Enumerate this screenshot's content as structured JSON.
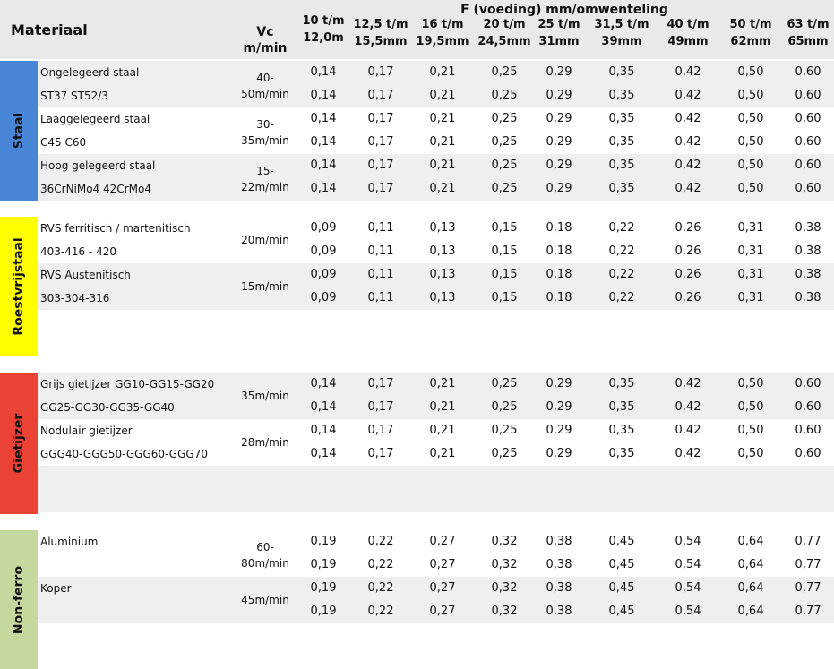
{
  "header": {
    "material": "Materiaal",
    "vc_line1": "Vc",
    "vc_line2": "m/min",
    "feed_title": "F  (voeding) mm/omwenteling",
    "columns": [
      {
        "l1": "10 t/m",
        "l2": "12,0m"
      },
      {
        "l1": "12,5 t/m",
        "l2": "15,5mm"
      },
      {
        "l1": "16 t/m",
        "l2": "19,5mm"
      },
      {
        "l1": "20 t/m",
        "l2": "24,5mm"
      },
      {
        "l1": "25 t/m",
        "l2": "31mm"
      },
      {
        "l1": "31,5 t/m",
        "l2": "39mm"
      },
      {
        "l1": "40 t/m",
        "l2": "49mm"
      },
      {
        "l1": "50 t/m",
        "l2": "62mm"
      },
      {
        "l1": "63 t/m",
        "l2": "65mm"
      }
    ]
  },
  "categories": [
    {
      "name": "Staal",
      "color": "#4a86d8"
    },
    {
      "name": "Roestvrijstaal",
      "color": "#ffff00"
    },
    {
      "name": "Gietijzer",
      "color": "#ea4335"
    },
    {
      "name": "Non-ferro",
      "color": "#c5d89e"
    }
  ],
  "rows": [
    {
      "cat": 0,
      "desc": "Ongelegeerd staal",
      "vc1": "40-",
      "values": [
        "0,14",
        "0,17",
        "0,21",
        "0,25",
        "0,29",
        "0,35",
        "0,42",
        "0,50",
        "0,60"
      ]
    },
    {
      "cat": 0,
      "desc": "ST37 ST52/3",
      "vc2": "50m/min",
      "values": [
        "0,14",
        "0,17",
        "0,21",
        "0,25",
        "0,29",
        "0,35",
        "0,42",
        "0,50",
        "0,60"
      ]
    },
    {
      "cat": 0,
      "desc": "Laaggelegeerd staal",
      "vc1": "30-",
      "values": [
        "0,14",
        "0,17",
        "0,21",
        "0,25",
        "0,29",
        "0,35",
        "0,42",
        "0,50",
        "0,60"
      ]
    },
    {
      "cat": 0,
      "desc": "C45 C60",
      "vc2": "35m/min",
      "values": [
        "0,14",
        "0,17",
        "0,21",
        "0,25",
        "0,29",
        "0,35",
        "0,42",
        "0,50",
        "0,60"
      ]
    },
    {
      "cat": 0,
      "desc": "Hoog gelegeerd staal",
      "vc1": "15-",
      "values": [
        "0,14",
        "0,17",
        "0,21",
        "0,25",
        "0,29",
        "0,35",
        "0,42",
        "0,50",
        "0,60"
      ]
    },
    {
      "cat": 0,
      "desc": "36CrNiMo4 42CrMo4",
      "vc2": "22m/min",
      "values": [
        "0,14",
        "0,17",
        "0,21",
        "0,25",
        "0,29",
        "0,35",
        "0,42",
        "0,50",
        "0,60"
      ]
    },
    {
      "cat": 1,
      "desc": "RVS ferritisch / martenitisch",
      "vcm": "20m/min",
      "values": [
        "0,09",
        "0,11",
        "0,13",
        "0,15",
        "0,18",
        "0,22",
        "0,26",
        "0,31",
        "0,38"
      ]
    },
    {
      "cat": 1,
      "desc": " 403-416 - 420",
      "values": [
        "0,09",
        "0,11",
        "0,13",
        "0,15",
        "0,18",
        "0,22",
        "0,26",
        "0,31",
        "0,38"
      ]
    },
    {
      "cat": 1,
      "desc": "RVS Austenitisch",
      "vcm": "15m/min",
      "values": [
        "0,09",
        "0,11",
        "0,13",
        "0,15",
        "0,18",
        "0,22",
        "0,26",
        "0,31",
        "0,38"
      ]
    },
    {
      "cat": 1,
      "desc": "303-304-316",
      "values": [
        "0,09",
        "0,11",
        "0,13",
        "0,15",
        "0,18",
        "0,22",
        "0,26",
        "0,31",
        "0,38"
      ]
    },
    {
      "cat": 2,
      "desc": "Grijs gietijzer GG10-GG15-GG20",
      "vcm": "35m/min",
      "values": [
        "0,14",
        "0,17",
        "0,21",
        "0,25",
        "0,29",
        "0,35",
        "0,42",
        "0,50",
        "0,60"
      ]
    },
    {
      "cat": 2,
      "desc": "GG25-GG30-GG35-GG40",
      "values": [
        "0,14",
        "0,17",
        "0,21",
        "0,25",
        "0,29",
        "0,35",
        "0,42",
        "0,50",
        "0,60"
      ]
    },
    {
      "cat": 2,
      "desc": "Nodulair gietijzer",
      "vcm": "28m/min",
      "values": [
        "0,14",
        "0,17",
        "0,21",
        "0,25",
        "0,29",
        "0,35",
        "0,42",
        "0,50",
        "0,60"
      ]
    },
    {
      "cat": 2,
      "desc": "GGG40-GGG50-GGG60-GGG70",
      "values": [
        "0,14",
        "0,17",
        "0,21",
        "0,25",
        "0,29",
        "0,35",
        "0,42",
        "0,50",
        "0,60"
      ]
    },
    {
      "cat": 3,
      "desc": "Aluminium",
      "vc1": "60-",
      "values": [
        "0,19",
        "0,22",
        "0,27",
        "0,32",
        "0,38",
        "0,45",
        "0,54",
        "0,64",
        "0,77"
      ]
    },
    {
      "cat": 3,
      "desc": "",
      "vc2": "80m/min",
      "values": [
        "0,19",
        "0,22",
        "0,27",
        "0,32",
        "0,38",
        "0,45",
        "0,54",
        "0,64",
        "0,77"
      ]
    },
    {
      "cat": 3,
      "desc": "Koper",
      "vcm": "45m/min",
      "values": [
        "0,19",
        "0,22",
        "0,27",
        "0,32",
        "0,38",
        "0,45",
        "0,54",
        "0,64",
        "0,77"
      ]
    },
    {
      "cat": 3,
      "desc": "",
      "values": [
        "0,19",
        "0,22",
        "0,27",
        "0,32",
        "0,38",
        "0,45",
        "0,54",
        "0,64",
        "0,77"
      ]
    }
  ]
}
